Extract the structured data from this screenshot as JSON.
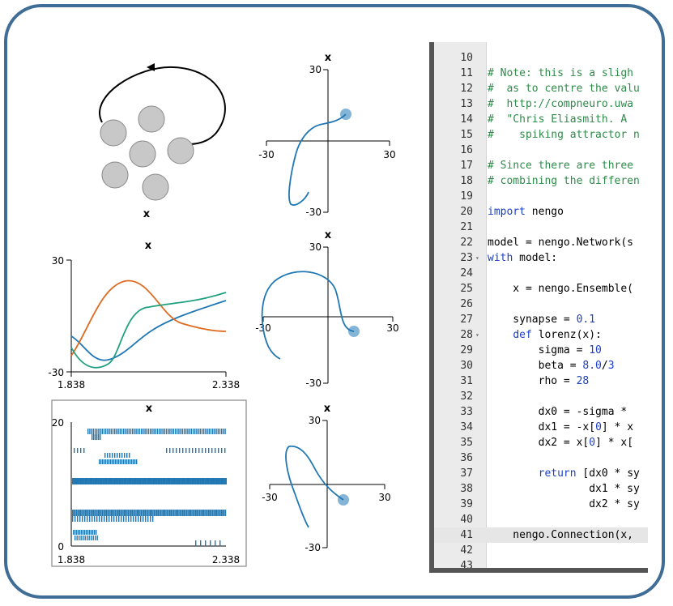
{
  "colors": {
    "frame": "#3f6d96",
    "series_blue": "#1f77b4",
    "series_orange": "#e06a1f",
    "series_green": "#20a080",
    "neuron_fill": "#c8c8c8"
  },
  "network_diagram": {
    "label": "x"
  },
  "value_plot": {
    "title": "x",
    "y_max": "30",
    "y_min": "-30",
    "x_start": "1.838",
    "x_end": "2.338"
  },
  "spike_raster": {
    "title": "x",
    "y_max": "20",
    "y_min": "0",
    "x_start": "1.838",
    "x_end": "2.338"
  },
  "xy_plots": [
    {
      "title": "x",
      "y_max": "30",
      "y_min": "-30",
      "x_min": "-30",
      "x_max": "30"
    },
    {
      "title": "x",
      "y_max": "30",
      "y_min": "-30",
      "x_min": "-30",
      "x_max": "30"
    },
    {
      "title": "x",
      "y_max": "30",
      "y_min": "-30",
      "x_min": "-30",
      "x_max": "30"
    }
  ],
  "editor": {
    "lines": [
      {
        "n": "10",
        "fold": "",
        "segs": []
      },
      {
        "n": "11",
        "fold": "",
        "segs": [
          {
            "t": "# Note: this is a sligh",
            "c": "comment"
          }
        ]
      },
      {
        "n": "12",
        "fold": "",
        "segs": [
          {
            "t": "#  as to centre the valu",
            "c": "comment"
          }
        ]
      },
      {
        "n": "13",
        "fold": "",
        "segs": [
          {
            "t": "#  http://compneuro.uwa",
            "c": "comment"
          }
        ]
      },
      {
        "n": "14",
        "fold": "",
        "segs": [
          {
            "t": "#  \"Chris Eliasmith. A ",
            "c": "comment"
          }
        ]
      },
      {
        "n": "15",
        "fold": "",
        "segs": [
          {
            "t": "#    spiking attractor n",
            "c": "comment"
          }
        ]
      },
      {
        "n": "16",
        "fold": "",
        "segs": []
      },
      {
        "n": "17",
        "fold": "",
        "segs": [
          {
            "t": "# Since there are three",
            "c": "comment"
          }
        ]
      },
      {
        "n": "18",
        "fold": "",
        "segs": [
          {
            "t": "# combining the differen",
            "c": "comment"
          }
        ]
      },
      {
        "n": "19",
        "fold": "",
        "segs": []
      },
      {
        "n": "20",
        "fold": "",
        "segs": [
          {
            "t": "import",
            "c": "keyword"
          },
          {
            "t": " nengo",
            "c": ""
          }
        ]
      },
      {
        "n": "21",
        "fold": "",
        "segs": []
      },
      {
        "n": "22",
        "fold": "",
        "segs": [
          {
            "t": "model = nengo.Network(s",
            "c": ""
          }
        ]
      },
      {
        "n": "23",
        "fold": "▾",
        "segs": [
          {
            "t": "with",
            "c": "keyword"
          },
          {
            "t": " model:",
            "c": ""
          }
        ]
      },
      {
        "n": "24",
        "fold": "",
        "segs": []
      },
      {
        "n": "25",
        "fold": "",
        "segs": [
          {
            "t": "    x = nengo.Ensemble(",
            "c": ""
          }
        ]
      },
      {
        "n": "26",
        "fold": "",
        "segs": []
      },
      {
        "n": "27",
        "fold": "",
        "segs": [
          {
            "t": "    synapse = ",
            "c": ""
          },
          {
            "t": "0.1",
            "c": "number"
          }
        ]
      },
      {
        "n": "28",
        "fold": "▾",
        "segs": [
          {
            "t": "    ",
            "c": ""
          },
          {
            "t": "def",
            "c": "keyword"
          },
          {
            "t": " lorenz(x):",
            "c": ""
          }
        ]
      },
      {
        "n": "29",
        "fold": "",
        "segs": [
          {
            "t": "        sigma = ",
            "c": ""
          },
          {
            "t": "10",
            "c": "number"
          }
        ]
      },
      {
        "n": "30",
        "fold": "",
        "segs": [
          {
            "t": "        beta = ",
            "c": ""
          },
          {
            "t": "8.0",
            "c": "number"
          },
          {
            "t": "/",
            "c": ""
          },
          {
            "t": "3",
            "c": "number"
          }
        ]
      },
      {
        "n": "31",
        "fold": "",
        "segs": [
          {
            "t": "        rho = ",
            "c": ""
          },
          {
            "t": "28",
            "c": "number"
          }
        ]
      },
      {
        "n": "32",
        "fold": "",
        "segs": []
      },
      {
        "n": "33",
        "fold": "",
        "segs": [
          {
            "t": "        dx0 = -sigma * ",
            "c": ""
          }
        ]
      },
      {
        "n": "34",
        "fold": "",
        "segs": [
          {
            "t": "        dx1 = -x[",
            "c": ""
          },
          {
            "t": "0",
            "c": "number"
          },
          {
            "t": "] * x",
            "c": ""
          }
        ]
      },
      {
        "n": "35",
        "fold": "",
        "segs": [
          {
            "t": "        dx2 = x[",
            "c": ""
          },
          {
            "t": "0",
            "c": "number"
          },
          {
            "t": "] * x[",
            "c": ""
          }
        ]
      },
      {
        "n": "36",
        "fold": "",
        "segs": []
      },
      {
        "n": "37",
        "fold": "",
        "segs": [
          {
            "t": "        ",
            "c": ""
          },
          {
            "t": "return",
            "c": "keyword"
          },
          {
            "t": " [dx0 * sy",
            "c": ""
          }
        ]
      },
      {
        "n": "38",
        "fold": "",
        "segs": [
          {
            "t": "                dx1 * sy",
            "c": ""
          }
        ]
      },
      {
        "n": "39",
        "fold": "",
        "segs": [
          {
            "t": "                dx2 * sy",
            "c": ""
          }
        ]
      },
      {
        "n": "40",
        "fold": "",
        "segs": []
      },
      {
        "n": "41",
        "fold": "",
        "segs": [
          {
            "t": "    nengo.Connection(x, ",
            "c": ""
          }
        ],
        "active": true
      },
      {
        "n": "42",
        "fold": "",
        "segs": []
      },
      {
        "n": "43",
        "fold": "",
        "segs": []
      }
    ]
  }
}
